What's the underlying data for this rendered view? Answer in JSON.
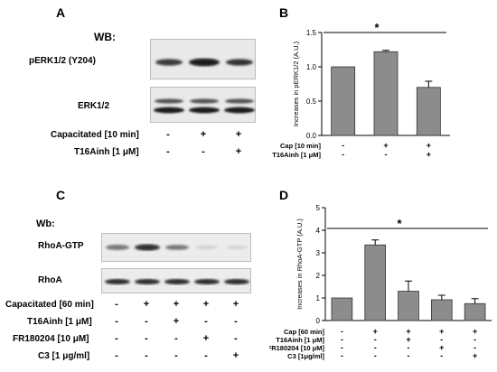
{
  "panel_a": {
    "letter": "A",
    "wb_title": "WB:",
    "blot_labels": [
      "pERK1/2 (Y204)",
      "ERK1/2"
    ],
    "lanes": 3,
    "treatment_rows": [
      {
        "label": "Capacitated [10 min]",
        "signs": [
          "-",
          "+",
          "+"
        ]
      },
      {
        "label": "T16Ainh [1 μM]",
        "signs": [
          "-",
          "-",
          "+"
        ]
      }
    ]
  },
  "panel_c": {
    "letter": "C",
    "wb_title": "Wb:",
    "blot_labels": [
      "RhoA-GTP",
      "RhoA"
    ],
    "lanes": 5,
    "treatment_rows": [
      {
        "label": "Capacitated [60 min]",
        "signs": [
          "-",
          "+",
          "+",
          "+",
          "+"
        ]
      },
      {
        "label": "T16Ainh [1 μM]",
        "signs": [
          "-",
          "-",
          "+",
          "-",
          "-"
        ]
      },
      {
        "label": "FR180204 [10 μM]",
        "signs": [
          "-",
          "-",
          "-",
          "+",
          "-"
        ]
      },
      {
        "label": "C3 [1 μg/ml]",
        "signs": [
          "-",
          "-",
          "-",
          "-",
          "+"
        ]
      }
    ]
  },
  "chart_data": [
    {
      "panel": "B",
      "type": "bar",
      "title": "",
      "ylabel": "Increases in pERK1/2 (A.U.)",
      "ylim": [
        0,
        1.5
      ],
      "yticks": [
        "0.0",
        "0.5",
        "1.0",
        "1.5"
      ],
      "values": [
        1.0,
        1.22,
        0.7
      ],
      "errors": [
        0.0,
        0.02,
        0.09
      ],
      "significance": "*",
      "treatment_rows": [
        {
          "label": "Cap [10 min]",
          "signs": [
            "-",
            "+",
            "+"
          ]
        },
        {
          "label": "T16Ainh [1 μM]",
          "signs": [
            "-",
            "-",
            "+"
          ]
        }
      ],
      "bar_color": "#8c8c8c"
    },
    {
      "panel": "D",
      "type": "bar",
      "title": "",
      "ylabel": "Increases in RhoA-GTP (A.U.)",
      "ylim": [
        0,
        5
      ],
      "yticks": [
        "0",
        "1",
        "2",
        "3",
        "4",
        "5"
      ],
      "values": [
        1.0,
        3.35,
        1.3,
        0.92,
        0.75
      ],
      "errors": [
        0.0,
        0.22,
        0.45,
        0.2,
        0.22
      ],
      "significance": "*",
      "treatment_rows": [
        {
          "label": "Cap [60 min]",
          "signs": [
            "-",
            "+",
            "+",
            "+",
            "+"
          ]
        },
        {
          "label": "T16Ainh [1 μM]",
          "signs": [
            "-",
            "-",
            "+",
            "-",
            "-"
          ]
        },
        {
          "label": "FR180204 [10 μM]",
          "signs": [
            "-",
            "-",
            "-",
            "+",
            "-"
          ]
        },
        {
          "label": "C3 [1μg/ml]",
          "signs": [
            "-",
            "-",
            "-",
            "-",
            "+"
          ]
        }
      ],
      "bar_color": "#8c8c8c"
    }
  ]
}
